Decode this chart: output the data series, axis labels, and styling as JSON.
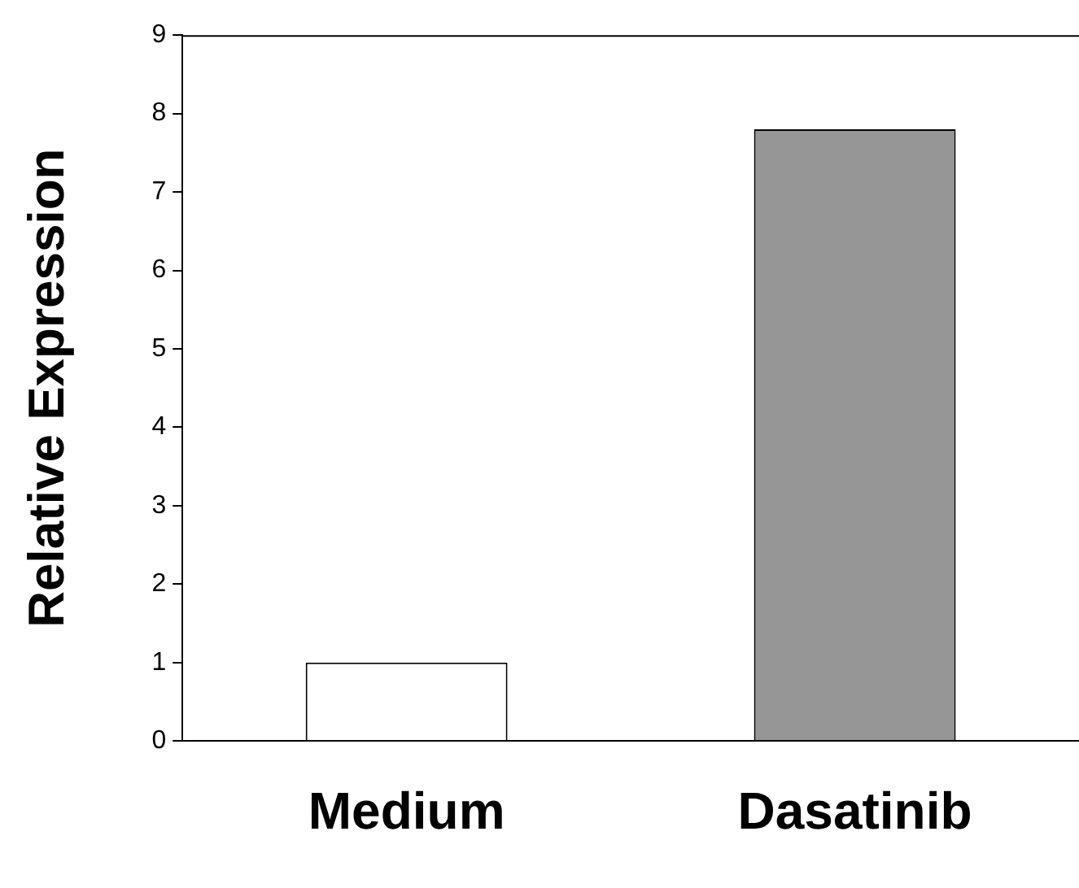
{
  "chart_data": {
    "type": "bar",
    "ylabel": "Relative Expression",
    "categories": [
      "Medium",
      "Dasatinib"
    ],
    "values": [
      1,
      7.8
    ],
    "colors": [
      "#ffffff",
      "#969696"
    ],
    "ylim": [
      0,
      9
    ],
    "yticks": [
      0,
      1,
      2,
      3,
      4,
      5,
      6,
      7,
      8,
      9
    ],
    "grid": false
  }
}
